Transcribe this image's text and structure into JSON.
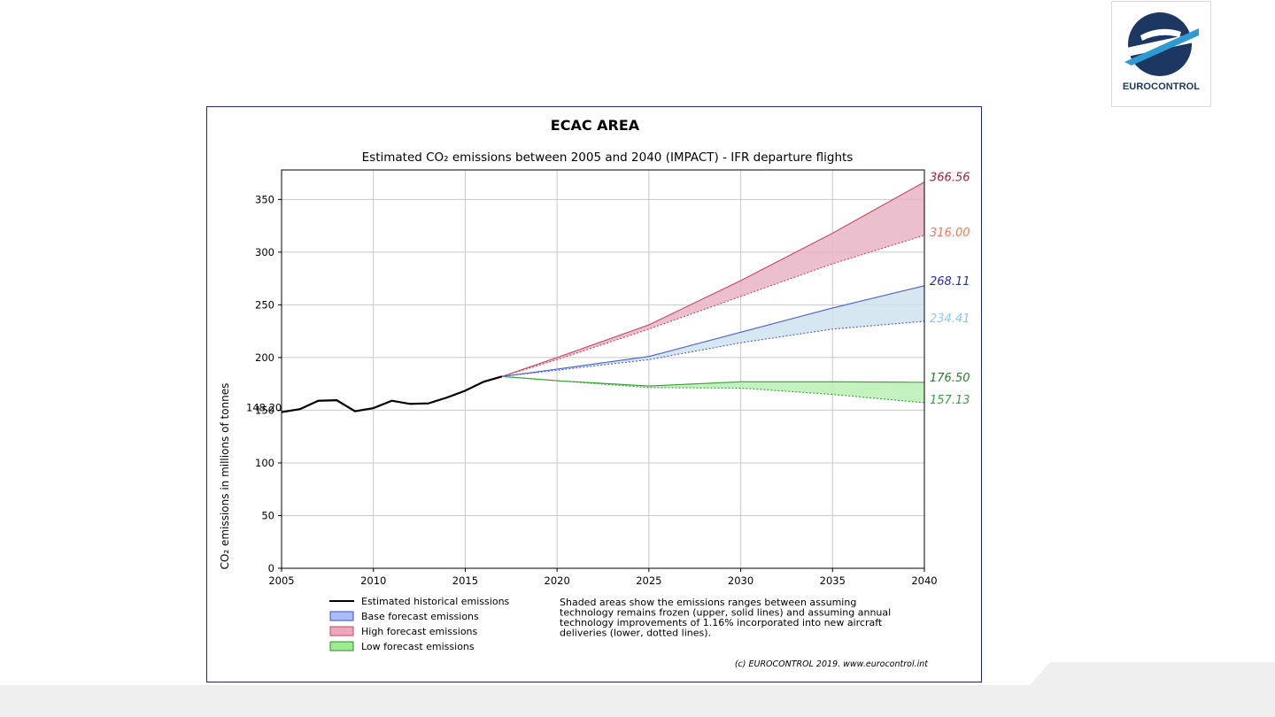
{
  "logo": {
    "text": "EUROCONTROL",
    "icon": "eurocontrol-logo-icon",
    "color": "#1c3762"
  },
  "chart_data": {
    "type": "area",
    "title": "ECAC AREA",
    "subtitle": "Estimated CO₂ emissions between 2005 and 2040 (IMPACT) - IFR departure flights",
    "xlabel": "",
    "ylabel": "CO₂ emissions in millions of tonnes",
    "xlim": [
      2005,
      2040
    ],
    "ylim": [
      0,
      378
    ],
    "xticks": [
      2005,
      2010,
      2015,
      2020,
      2025,
      2030,
      2035,
      2040
    ],
    "yticks": [
      0,
      50,
      100,
      150,
      200,
      250,
      300,
      350
    ],
    "grid": true,
    "start_label": "148.20",
    "historical": {
      "name": "Estimated historical emissions",
      "color": "#000000",
      "x": [
        2005,
        2006,
        2007,
        2008,
        2009,
        2010,
        2011,
        2012,
        2013,
        2014,
        2015,
        2016,
        2017
      ],
      "y": [
        148.2,
        151,
        159,
        159.5,
        149,
        152,
        159,
        156,
        156.5,
        162,
        168.5,
        177,
        182
      ]
    },
    "forecast_x": [
      2017,
      2020,
      2025,
      2030,
      2035,
      2040
    ],
    "series": [
      {
        "name": "High forecast emissions",
        "line_color": "#c2475e",
        "fill_color": "#e8b4c4",
        "upper": [
          182,
          200,
          231,
          273,
          318,
          366.56
        ],
        "lower": [
          182,
          198,
          227,
          258,
          289,
          316.0
        ],
        "upper_label": "366.56",
        "upper_label_color": "#a51e36",
        "lower_label": "316.00",
        "lower_label_color": "#f07860"
      },
      {
        "name": "Base forecast emissions",
        "line_color": "#4a5fd0",
        "fill_color": "#cfe3ef",
        "upper": [
          182,
          189,
          201,
          224,
          247,
          268.11
        ],
        "lower": [
          182,
          188,
          198,
          214,
          227,
          234.41
        ],
        "upper_label": "268.11",
        "upper_label_color": "#2a2ab0",
        "lower_label": "234.41",
        "lower_label_color": "#8ec8e8"
      },
      {
        "name": "Low forecast emissions",
        "line_color": "#35a035",
        "fill_color": "#b9f0b4",
        "upper": [
          182,
          178,
          173,
          177,
          177,
          176.5
        ],
        "lower": [
          182,
          178,
          171.5,
          171,
          165,
          157.13
        ],
        "upper_label": "176.50",
        "upper_label_color": "#2a7a2a",
        "lower_label": "157.13",
        "lower_label_color": "#3c9e3c"
      }
    ],
    "legend": {
      "placement": "bottom-left",
      "items": [
        {
          "label": "Estimated historical emissions",
          "kind": "line",
          "color": "#000000"
        },
        {
          "label": "Base forecast emissions",
          "kind": "patch",
          "color": "#a9bcf5",
          "edge": "#3a4fd0"
        },
        {
          "label": "High forecast emissions",
          "kind": "patch",
          "color": "#eea8bd",
          "edge": "#c2475e"
        },
        {
          "label": "Low forecast emissions",
          "kind": "patch",
          "color": "#9ceb90",
          "edge": "#2c8e2c"
        }
      ]
    },
    "note_lines": [
      "Shaded areas show the emissions ranges between assuming",
      "technology remains frozen (upper, solid lines) and assuming annual",
      "technology improvements of 1.16% incorporated into new aircraft",
      "deliveries (lower, dotted lines)."
    ],
    "copyright": "(c) EUROCONTROL 2019. www.eurocontrol.int"
  }
}
